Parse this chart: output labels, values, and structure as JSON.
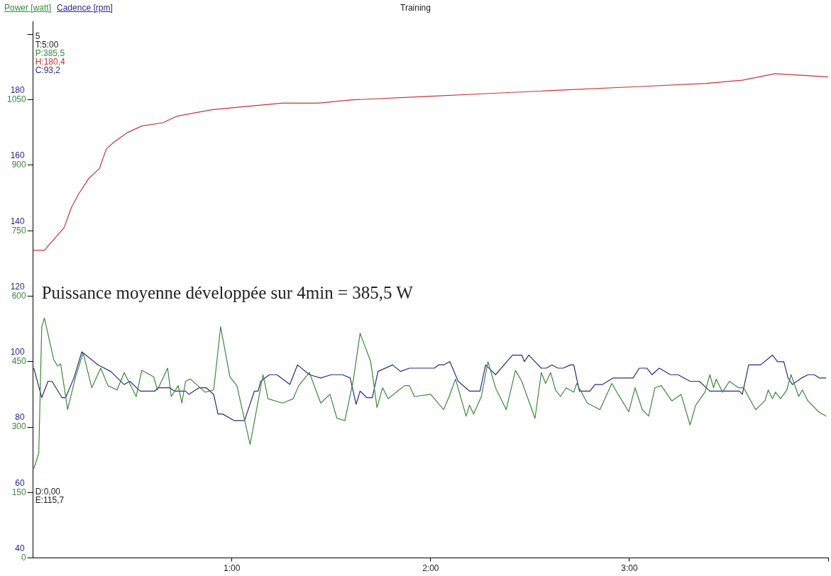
{
  "chart_data": {
    "type": "line",
    "title": "Training",
    "legend": "top left",
    "xlim": [
      0,
      240
    ],
    "xticks": [
      {
        "value": 60,
        "label": "1:00"
      },
      {
        "value": 120,
        "label": "2:00"
      },
      {
        "value": 180,
        "label": "3:00"
      },
      {
        "value": 240,
        "label": null
      }
    ],
    "ylim": [
      0,
      1230
    ],
    "yticks": [
      0,
      150,
      300,
      450,
      600,
      750,
      900,
      1050,
      {
        "value": 1200,
        "label": null
      }
    ],
    "y2lim": [
      40,
      204
    ],
    "y2ticks": [
      40,
      60,
      80,
      100,
      120,
      140,
      160,
      180
    ],
    "annotations": [
      "5",
      "T:5:00",
      "P:385,5",
      "H:180,4",
      "C:93,2",
      "Puissance moyenne développée sur 4min = 385,5 W",
      "D:0,00",
      "E:115,7"
    ],
    "series": [
      {
        "name": "Power [watt]",
        "color": "#3a8a3a",
        "x": [
          0.2,
          1.7,
          2.6,
          3.4,
          6.2,
          7.4,
          8.3,
          10.4,
          12.8,
          15.1,
          17.7,
          20.4,
          22.6,
          25.3,
          27.5,
          31.1,
          32.8,
          36.4,
          37.5,
          40.6,
          41.7,
          43.8,
          44.9,
          46.0,
          47.5,
          51.9,
          54.5,
          56.6,
          59.4,
          61.5,
          65.5,
          69.4,
          70.9,
          75.3,
          78.5,
          80.2,
          83.4,
          86.8,
          89.6,
          91.7,
          94.1,
          96.6,
          98.7,
          101.9,
          103.8,
          105.5,
          107.2,
          112.1,
          113.6,
          115.1,
          120.0,
          123.9,
          125.6,
          127.5,
          130.7,
          131.7,
          133.0,
          135.3,
          137.3,
          139.6,
          142.8,
          145.6,
          147.5,
          151.5,
          153.4,
          154.7,
          156.2,
          157.7,
          159.2,
          160.9,
          163.2,
          164.1,
          167.3,
          171.1,
          174.7,
          176.6,
          179.8,
          181.7,
          183.9,
          185.8,
          187.7,
          189.6,
          192.8,
          195.6,
          198.3,
          200.0,
          202.8,
          204.3,
          205.4,
          206.2,
          208.1,
          210.2,
          213.0,
          214.5,
          218.1,
          220.9,
          221.9,
          223.2,
          224.1,
          225.6,
          227.5,
          228.8,
          231.1,
          232.2,
          233.9,
          237.1,
          239.4
        ],
        "values": [
          205,
          240,
          530,
          550,
          455,
          440,
          445,
          340,
          415,
          470,
          390,
          435,
          395,
          385,
          425,
          370,
          430,
          415,
          385,
          435,
          370,
          395,
          355,
          405,
          410,
          380,
          385,
          530,
          415,
          395,
          260,
          420,
          365,
          355,
          365,
          395,
          425,
          355,
          375,
          320,
          315,
          405,
          515,
          450,
          345,
          390,
          365,
          395,
          395,
          370,
          375,
          340,
          370,
          410,
          325,
          350,
          330,
          370,
          450,
          390,
          340,
          430,
          405,
          320,
          425,
          400,
          425,
          385,
          370,
          390,
          380,
          400,
          355,
          340,
          400,
          375,
          335,
          390,
          340,
          325,
          390,
          395,
          360,
          375,
          305,
          350,
          380,
          420,
          390,
          410,
          380,
          405,
          390,
          390,
          340,
          360,
          385,
          365,
          380,
          365,
          385,
          420,
          370,
          385,
          360,
          335,
          325
        ]
      },
      {
        "name": "Cadence [rpm]",
        "color": "#2a2a8a",
        "axis": "y2",
        "x": [
          0.2,
          2.6,
          4.5,
          5.7,
          8.7,
          9.8,
          12.3,
          14.7,
          19.6,
          23.4,
          27.5,
          29.2,
          32.3,
          36.8,
          37.7,
          41.3,
          42.6,
          46,
          47,
          50,
          52.3,
          54.5,
          55.8,
          57.2,
          60.6,
          63.8,
          66.8,
          67.9,
          68.7,
          71.3,
          73.6,
          77.5,
          79.8,
          83.4,
          86.8,
          90,
          93.4,
          95.7,
          97.5,
          98.7,
          100.7,
          102.4,
          104.1,
          108.5,
          110.9,
          113.6,
          121.1,
          122.4,
          123.9,
          125.8,
          128.3,
          131.7,
          134.9,
          136.6,
          139.6,
          144.7,
          147.5,
          148.3,
          149.6,
          153.4,
          154.9,
          156.6,
          158.5,
          160,
          162.2,
          163.2,
          164.9,
          168.1,
          169.6,
          171.9,
          175.1,
          176.6,
          181.1,
          183,
          185.3,
          186.8,
          189,
          192.4,
          194.7,
          198.3,
          201.1,
          204.3,
          206.6,
          208.1,
          213.2,
          214.1,
          216,
          219.6,
          223.2,
          224.7,
          226.6,
          227.9,
          229.2,
          232,
          233.9,
          235.8,
          237.3,
          239.4
        ],
        "values": [
          98,
          89,
          94,
          94,
          89,
          89,
          95,
          103,
          99,
          97,
          93,
          94,
          91,
          91,
          92,
          92,
          91,
          91,
          90,
          92,
          92,
          90,
          84,
          84,
          82,
          82,
          91,
          91,
          94,
          96,
          96,
          93,
          99,
          96,
          95,
          96,
          96,
          95,
          87,
          91,
          89,
          89,
          97,
          99,
          97,
          98,
          98,
          99,
          99,
          100,
          94,
          91,
          91,
          99,
          96,
          102,
          102,
          100,
          102,
          98,
          98,
          99,
          98,
          98,
          99,
          99,
          91,
          91,
          93,
          93,
          95,
          95,
          95,
          98,
          98,
          96,
          98,
          96,
          96,
          94,
          94,
          91,
          91,
          91,
          91,
          90,
          99,
          99,
          102,
          100,
          100,
          95,
          93,
          95,
          96,
          96,
          95,
          95
        ]
      },
      {
        "color": "#cc3333",
        "axis": "y2",
        "x": [
          0,
          3.4,
          5.1,
          9.4,
          11.5,
          13.6,
          16.8,
          20,
          22.1,
          24.3,
          28.5,
          32.8,
          39.2,
          43.4,
          54,
          64.7,
          75.3,
          86,
          96.6,
          118,
          139,
          160,
          182,
          203,
          214,
          224,
          240
        ],
        "values": [
          134,
          134,
          136,
          141,
          147,
          151,
          156,
          159,
          165,
          167,
          170,
          172,
          173,
          175,
          177,
          178,
          179,
          179,
          180,
          181,
          182,
          183,
          184,
          185,
          186,
          188,
          187
        ]
      }
    ]
  }
}
